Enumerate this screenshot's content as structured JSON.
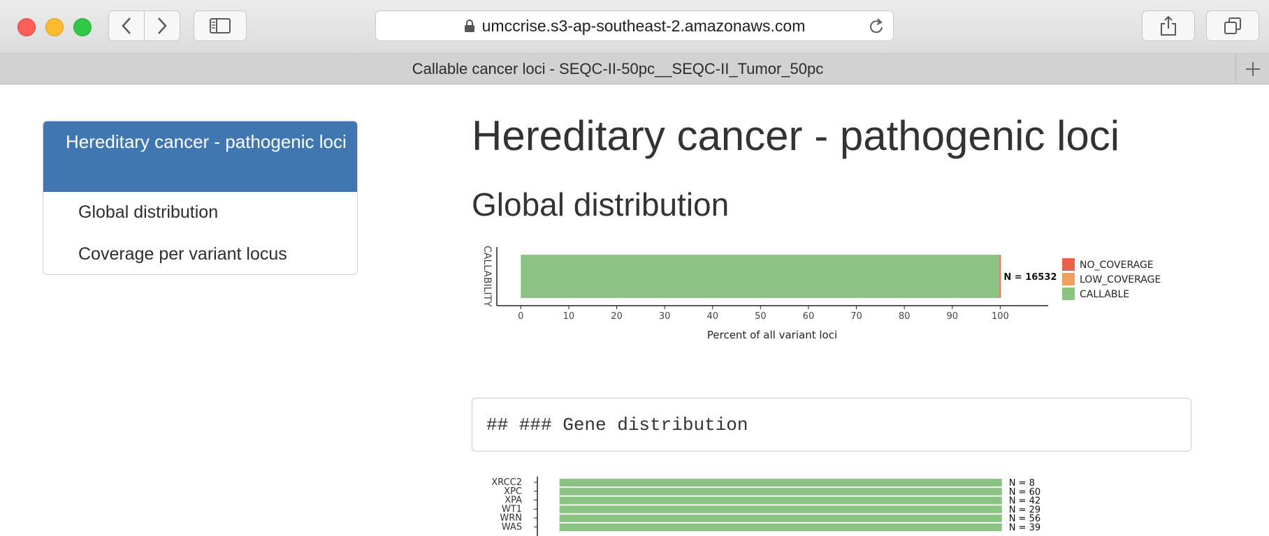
{
  "browser": {
    "url": "umccrise.s3-ap-southeast-2.amazonaws.com",
    "tab_title": "Callable cancer loci - SEQC-II-50pc__SEQC-II_Tumor_50pc"
  },
  "toc": {
    "active": "Hereditary cancer - pathogenic loci",
    "items": [
      "Global distribution",
      "Coverage per variant locus"
    ]
  },
  "page": {
    "title": "Hereditary cancer - pathogenic loci",
    "section_global": "Global distribution",
    "code_block": "## ### Gene distribution"
  },
  "chart_data": [
    {
      "type": "bar",
      "orientation": "horizontal",
      "stacked": true,
      "ylabel": "CALLABILITY",
      "xlabel": "Percent of all variant loci",
      "x_ticks": [
        0,
        10,
        20,
        30,
        40,
        50,
        60,
        70,
        80,
        90,
        100
      ],
      "xlim": [
        -5,
        110
      ],
      "categories": [
        ""
      ],
      "series": [
        {
          "name": "CALLABLE",
          "color": "#8bc382",
          "values": [
            99.8
          ]
        },
        {
          "name": "LOW_COVERAGE",
          "color": "#f0a05e",
          "values": [
            0.1
          ]
        },
        {
          "name": "NO_COVERAGE",
          "color": "#e8614a",
          "values": [
            0.1
          ]
        }
      ],
      "annotation": "N = 16532",
      "legend": "right"
    },
    {
      "type": "bar",
      "orientation": "horizontal",
      "stacked": true,
      "categories": [
        "XRCC2",
        "XPC",
        "XPA",
        "WT1",
        "WRN",
        "WAS"
      ],
      "series": [
        {
          "name": "CALLABLE",
          "color": "#8bc382",
          "values": [
            100,
            100,
            100,
            100,
            100,
            100
          ]
        }
      ],
      "annotations": [
        "N = 8",
        "N = 60",
        "N = 42",
        "N = 29",
        "N = 56",
        "N = 39"
      ]
    }
  ]
}
